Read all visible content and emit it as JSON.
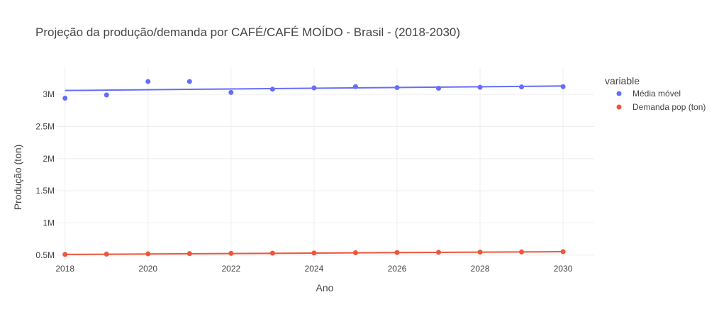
{
  "chart_data": {
    "type": "scatter",
    "title": "Projeção da produção/demanda por CAFÉ/CAFÉ MOÍDO - Brasil - (2018-2030)",
    "xlabel": "Ano",
    "ylabel": "Produção (ton)",
    "xlim": [
      2017.8,
      2030.75
    ],
    "ylim": [
      410000,
      3420000
    ],
    "x_ticks": [
      {
        "value": 2018,
        "label": "2018"
      },
      {
        "value": 2020,
        "label": "2020"
      },
      {
        "value": 2022,
        "label": "2022"
      },
      {
        "value": 2024,
        "label": "2024"
      },
      {
        "value": 2026,
        "label": "2026"
      },
      {
        "value": 2028,
        "label": "2028"
      },
      {
        "value": 2030,
        "label": "2030"
      }
    ],
    "y_ticks": [
      {
        "value": 500000,
        "label": "0.5M"
      },
      {
        "value": 1000000,
        "label": "1M"
      },
      {
        "value": 1500000,
        "label": "1.5M"
      },
      {
        "value": 2000000,
        "label": "2M"
      },
      {
        "value": 2500000,
        "label": "2.5M"
      },
      {
        "value": 3000000,
        "label": "3M"
      }
    ],
    "grid": true,
    "legend_title": "variable",
    "legend_position": "right",
    "x": [
      2018,
      2019,
      2020,
      2021,
      2022,
      2023,
      2024,
      2025,
      2026,
      2027,
      2028,
      2029,
      2030
    ],
    "series": [
      {
        "name": "Média móvel",
        "color": "#636efa",
        "values": [
          2940000,
          2990000,
          3200000,
          3200000,
          3030000,
          3080000,
          3100000,
          3120000,
          3105000,
          3095000,
          3110000,
          3115000,
          3120000
        ],
        "trendline": {
          "x": [
            2018,
            2030
          ],
          "y": [
            3060000,
            3130000
          ]
        }
      },
      {
        "name": "Demanda pop (ton)",
        "color": "#ef553b",
        "values": [
          510000,
          515000,
          520000,
          523000,
          527000,
          530000,
          533000,
          537000,
          540000,
          543000,
          546000,
          549000,
          553000
        ],
        "trendline": {
          "x": [
            2018,
            2030
          ],
          "y": [
            510000,
            553000
          ]
        }
      }
    ]
  }
}
